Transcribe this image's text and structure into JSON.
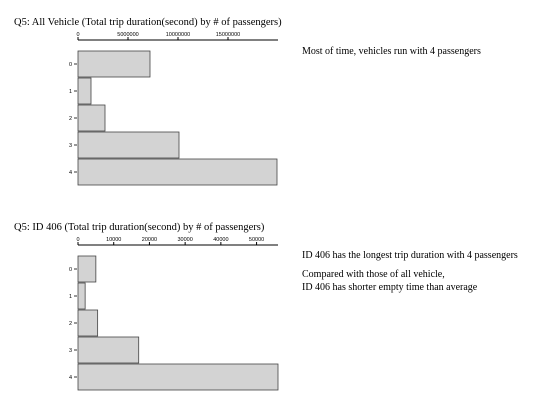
{
  "charts": [
    {
      "title": "Q5: All Vehicle (Total trip duration(second) by # of passengers)",
      "notes": [
        "Most of time, vehicles run with 4 passengers"
      ]
    },
    {
      "title": "Q5: ID 406 (Total trip duration(second) by # of passengers)",
      "notes": [
        "ID 406 has the longest trip duration with 4 passengers",
        "",
        "Compared with those of all vehicle,",
        "ID 406 has shorter empty time than average"
      ]
    }
  ],
  "chart_data": [
    {
      "type": "bar",
      "orientation": "horizontal",
      "title": "Q5: All Vehicle (Total trip duration(second) by # of passengers)",
      "categories": [
        "0",
        "1",
        "2",
        "3",
        "4"
      ],
      "values": [
        7200000,
        1300000,
        2700000,
        10100000,
        19900000
      ],
      "xticks": [
        0,
        5000000,
        10000000,
        15000000
      ],
      "xlim": [
        0,
        20000000
      ],
      "bar_color": "#d3d3d3",
      "axis_position": "top"
    },
    {
      "type": "bar",
      "orientation": "horizontal",
      "title": "Q5: ID 406 (Total trip duration(second) by # of passengers)",
      "categories": [
        "0",
        "1",
        "2",
        "3",
        "4"
      ],
      "values": [
        5000,
        2000,
        5500,
        17000,
        56000
      ],
      "xticks": [
        0,
        10000,
        20000,
        30000,
        40000,
        50000
      ],
      "xlim": [
        0,
        56000
      ],
      "bar_color": "#d3d3d3",
      "axis_position": "top"
    }
  ]
}
